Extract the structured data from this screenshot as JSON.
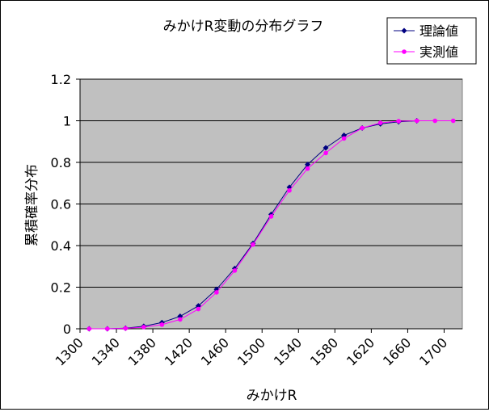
{
  "chart_data": {
    "type": "line",
    "title": "みかけR変動の分布グラフ",
    "xlabel": "みかけR",
    "ylabel": "累積確率分布",
    "xlim": [
      1300,
      1720
    ],
    "ylim": [
      0,
      1.2
    ],
    "x_ticks": [
      1300,
      1340,
      1380,
      1420,
      1460,
      1500,
      1540,
      1580,
      1620,
      1660,
      1700
    ],
    "y_ticks": [
      0,
      0.2,
      0.4,
      0.6,
      0.8,
      1,
      1.2
    ],
    "y_tick_labels": [
      "0",
      "0.2",
      "0.4",
      "0.6",
      "0.8",
      "1",
      "1.2"
    ],
    "grid": "horizontal",
    "plot_background": "#c0c0c0",
    "legend_position": "top-right",
    "series": [
      {
        "name": "理論値",
        "color": "#000080",
        "marker": "diamond",
        "x": [
          1310,
          1330,
          1350,
          1370,
          1390,
          1410,
          1430,
          1450,
          1470,
          1490,
          1510,
          1530,
          1550,
          1570,
          1590,
          1610,
          1630,
          1650,
          1670
        ],
        "y": [
          0.0,
          0.0,
          0.003,
          0.012,
          0.03,
          0.06,
          0.11,
          0.19,
          0.29,
          0.41,
          0.55,
          0.68,
          0.79,
          0.87,
          0.93,
          0.965,
          0.985,
          0.995,
          1.0
        ]
      },
      {
        "name": "実測値",
        "color": "#ff00ff",
        "marker": "circle",
        "x": [
          1310,
          1330,
          1350,
          1370,
          1390,
          1410,
          1430,
          1450,
          1470,
          1490,
          1510,
          1530,
          1550,
          1570,
          1590,
          1610,
          1630,
          1650,
          1670,
          1690,
          1710
        ],
        "y": [
          0.0,
          0.0,
          0.002,
          0.008,
          0.02,
          0.045,
          0.095,
          0.175,
          0.28,
          0.405,
          0.54,
          0.665,
          0.77,
          0.845,
          0.915,
          0.965,
          0.99,
          0.998,
          1.0,
          1.0,
          1.0
        ]
      }
    ]
  }
}
